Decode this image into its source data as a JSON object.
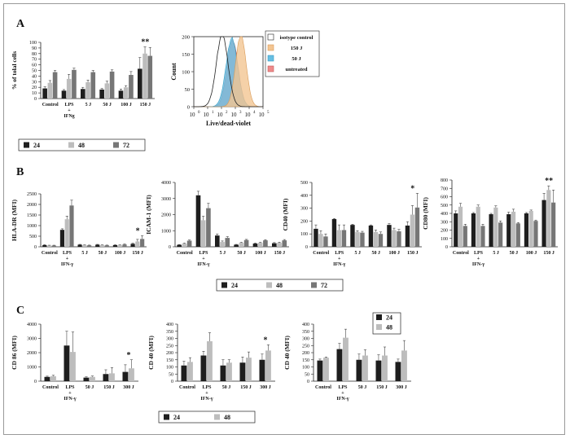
{
  "panels": {
    "A": {
      "label": "A"
    },
    "B": {
      "label": "B"
    },
    "C": {
      "label": "C"
    }
  },
  "colors": {
    "dark": "#1e1e1e",
    "light": "#bdbdbd",
    "mid": "#767676",
    "axis": "#222222"
  },
  "chart_data": [
    {
      "id": "A-bar",
      "type": "bar",
      "panel": "A",
      "title": "",
      "xlabel": "",
      "ylabel": "% of tolal cells",
      "ylim": [
        0,
        100
      ],
      "yticks": [
        0,
        10,
        20,
        30,
        40,
        50,
        60,
        70,
        80,
        90,
        100
      ],
      "categories": [
        "Control",
        "LPS\n+\nIFNg",
        "5 J",
        "50 J",
        "100 J",
        "150 J"
      ],
      "series": [
        {
          "name": "24",
          "color": "dark",
          "values": [
            18,
            14,
            17,
            16,
            14,
            53
          ],
          "errors": [
            3,
            2,
            3,
            2,
            3,
            20
          ]
        },
        {
          "name": "48",
          "color": "light",
          "values": [
            28,
            35,
            29,
            27,
            20,
            80
          ],
          "errors": [
            4,
            8,
            4,
            4,
            3,
            12
          ]
        },
        {
          "name": "72",
          "color": "mid",
          "values": [
            47,
            51,
            47,
            48,
            42,
            76
          ],
          "errors": [
            3,
            3,
            3,
            3,
            6,
            15
          ]
        }
      ],
      "annotations": [
        {
          "category": "150 J",
          "text": "**"
        }
      ]
    },
    {
      "id": "A-hist",
      "type": "area",
      "panel": "A",
      "title": "",
      "xlabel": "Live/dead-violet",
      "ylabel": "Count",
      "xlim": [
        0,
        5
      ],
      "ylim": [
        0,
        200
      ],
      "xticks": [
        "10",
        "10",
        "10",
        "10",
        "10",
        "10"
      ],
      "xtick_exponents": [
        "0",
        "1",
        "2",
        "3",
        "4",
        "5"
      ],
      "yticks": [
        0,
        50,
        100,
        150,
        200
      ],
      "legend": "right",
      "series": [
        {
          "name": "isotype control",
          "fill": "none",
          "stroke": "#222222",
          "center": 2.05,
          "width": 0.42,
          "height": 205
        },
        {
          "name": "150 J",
          "fill": "#f3c592",
          "stroke": "#d99a56",
          "center": 3.4,
          "width": 0.38,
          "height": 205
        },
        {
          "name": "50 J",
          "fill": "#67bfe3",
          "stroke": "#3a9bc2",
          "center": 2.75,
          "width": 0.42,
          "height": 195
        },
        {
          "name": "untreated",
          "fill": "#ef8b8b",
          "stroke": "#c45a5a",
          "center": 2.8,
          "width": 0.4,
          "height": 190
        }
      ]
    },
    {
      "id": "B-HLA",
      "type": "bar",
      "panel": "B",
      "title": "",
      "xlabel": "",
      "ylabel": "HLA-DR (MFI)",
      "ylim": [
        0,
        2500
      ],
      "yticks": [
        0,
        500,
        1000,
        1500,
        2000,
        2500
      ],
      "categories": [
        "Control",
        "LPS\n+\nIFN-γ",
        "5 J",
        "50 J",
        "100 J",
        "150 J"
      ],
      "series": [
        {
          "name": "24",
          "color": "dark",
          "values": [
            80,
            800,
            100,
            100,
            80,
            140
          ],
          "errors": [
            20,
            50,
            15,
            15,
            15,
            30
          ]
        },
        {
          "name": "48",
          "color": "light",
          "values": [
            60,
            1300,
            80,
            80,
            80,
            250
          ],
          "errors": [
            15,
            150,
            10,
            10,
            10,
            100
          ]
        },
        {
          "name": "72",
          "color": "mid",
          "values": [
            60,
            1950,
            70,
            70,
            110,
            370
          ],
          "errors": [
            15,
            250,
            10,
            10,
            20,
            150
          ]
        }
      ],
      "annotations": [
        {
          "category": "150 J",
          "text": "*"
        }
      ]
    },
    {
      "id": "B-ICAM",
      "type": "bar",
      "panel": "B",
      "title": "",
      "xlabel": "",
      "ylabel": "ICAM-1 (MFI)",
      "ylim": [
        0,
        4000
      ],
      "yticks": [
        0,
        1000,
        2000,
        3000,
        4000
      ],
      "categories": [
        "Control",
        "LPS\n+\nIFN-γ",
        "5 J",
        "50 J",
        "100 J",
        "150 J"
      ],
      "series": [
        {
          "name": "24",
          "color": "dark",
          "values": [
            120,
            3200,
            700,
            130,
            200,
            220
          ],
          "errors": [
            20,
            250,
            100,
            20,
            30,
            40
          ]
        },
        {
          "name": "48",
          "color": "light",
          "values": [
            200,
            1650,
            300,
            250,
            250,
            250
          ],
          "errors": [
            30,
            250,
            60,
            30,
            30,
            40
          ]
        },
        {
          "name": "72",
          "color": "mid",
          "values": [
            380,
            2400,
            550,
            420,
            400,
            400
          ],
          "errors": [
            40,
            300,
            80,
            40,
            40,
            50
          ]
        }
      ]
    },
    {
      "id": "B-CD40",
      "type": "bar",
      "panel": "B",
      "title": "",
      "xlabel": "",
      "ylabel": "CD40 (MFI)",
      "ylim": [
        0,
        500
      ],
      "yticks": [
        0,
        100,
        200,
        300,
        400,
        500
      ],
      "categories": [
        "Control",
        "LPS\n+\nIFN-γ",
        "5 J",
        "50 J",
        "100 J",
        "150 J"
      ],
      "series": [
        {
          "name": "24",
          "color": "dark",
          "values": [
            140,
            215,
            170,
            165,
            170,
            165
          ],
          "errors": [
            30,
            5,
            5,
            5,
            10,
            30
          ]
        },
        {
          "name": "48",
          "color": "light",
          "values": [
            100,
            130,
            115,
            115,
            130,
            250
          ],
          "errors": [
            25,
            40,
            10,
            15,
            15,
            70
          ]
        },
        {
          "name": "72",
          "color": "mid",
          "values": [
            80,
            130,
            110,
            100,
            120,
            305
          ],
          "errors": [
            20,
            40,
            10,
            15,
            15,
            110
          ]
        }
      ],
      "annotations": [
        {
          "category": "150 J",
          "text": "*"
        }
      ]
    },
    {
      "id": "B-CD80",
      "type": "bar",
      "panel": "B",
      "title": "",
      "xlabel": "",
      "ylabel": "CD80 (MFI)",
      "ylim": [
        0,
        800
      ],
      "yticks": [
        0,
        100,
        200,
        300,
        400,
        500,
        600,
        700,
        800
      ],
      "categories": [
        "Control",
        "LPS\n+\nIFN-γ",
        "5 J",
        "50 J",
        "100 J",
        "150 J"
      ],
      "series": [
        {
          "name": "24",
          "color": "dark",
          "values": [
            400,
            400,
            390,
            390,
            400,
            560
          ],
          "errors": [
            30,
            10,
            10,
            25,
            10,
            80
          ]
        },
        {
          "name": "48",
          "color": "light",
          "values": [
            480,
            480,
            470,
            420,
            430,
            680
          ],
          "errors": [
            40,
            20,
            20,
            30,
            10,
            50
          ]
        },
        {
          "name": "72",
          "color": "mid",
          "values": [
            250,
            250,
            290,
            280,
            310,
            530
          ],
          "errors": [
            20,
            20,
            20,
            10,
            10,
            150
          ]
        }
      ],
      "annotations": [
        {
          "category": "150 J",
          "text": "**"
        }
      ]
    },
    {
      "id": "C-CD86",
      "type": "bar",
      "panel": "C",
      "title": "",
      "xlabel": "",
      "ylabel": "CD 86 (MFI)",
      "ylim": [
        0,
        4000
      ],
      "yticks": [
        0,
        1000,
        2000,
        3000,
        4000
      ],
      "categories": [
        "Control",
        "LPS\n+\nIFN-γ",
        "50 J",
        "150 J",
        "300 J"
      ],
      "series": [
        {
          "name": "24",
          "color": "dark",
          "values": [
            300,
            2500,
            250,
            500,
            650
          ],
          "errors": [
            50,
            1000,
            50,
            300,
            500
          ]
        },
        {
          "name": "48",
          "color": "light",
          "values": [
            350,
            2050,
            300,
            550,
            900
          ],
          "errors": [
            60,
            1400,
            60,
            400,
            600
          ]
        }
      ],
      "annotations": [
        {
          "category": "300 J",
          "text": "*"
        }
      ]
    },
    {
      "id": "C-CD40a",
      "type": "bar",
      "panel": "C",
      "title": "",
      "xlabel": "",
      "ylabel": "CD 40 (MFI)",
      "ylim": [
        0,
        400
      ],
      "yticks": [
        0,
        50,
        100,
        150,
        200,
        250,
        300,
        350,
        400
      ],
      "categories": [
        "Control",
        "LPS\n+\nIFN-γ",
        "50 J",
        "150 J",
        "300 J"
      ],
      "series": [
        {
          "name": "24",
          "color": "dark",
          "values": [
            110,
            180,
            110,
            130,
            150
          ],
          "errors": [
            30,
            30,
            40,
            40,
            40
          ]
        },
        {
          "name": "48",
          "color": "light",
          "values": [
            135,
            280,
            130,
            165,
            215
          ],
          "errors": [
            30,
            60,
            20,
            40,
            40
          ]
        }
      ],
      "annotations": [
        {
          "category": "300 J",
          "text": "*"
        }
      ]
    },
    {
      "id": "C-CD40b",
      "type": "bar",
      "panel": "C",
      "title": "",
      "xlabel": "",
      "ylabel": "CD 40 (MFI)",
      "ylim": [
        0,
        400
      ],
      "yticks": [
        0,
        50,
        100,
        150,
        200,
        250,
        300,
        350,
        400
      ],
      "categories": [
        "Control",
        "LPS\n+\nIFN-γ",
        "50 J",
        "150 J",
        "300 J"
      ],
      "series": [
        {
          "name": "24",
          "color": "dark",
          "values": [
            145,
            225,
            150,
            145,
            135
          ],
          "errors": [
            10,
            40,
            40,
            40,
            20
          ]
        },
        {
          "name": "48",
          "color": "light",
          "values": [
            165,
            305,
            180,
            180,
            215
          ],
          "errors": [
            5,
            60,
            40,
            60,
            70
          ]
        }
      ]
    }
  ],
  "legends": [
    {
      "id": "legend-A",
      "items": [
        {
          "label": "24",
          "color": "dark"
        },
        {
          "label": "48",
          "color": "light"
        },
        {
          "label": "72",
          "color": "mid"
        }
      ]
    },
    {
      "id": "legend-B",
      "items": [
        {
          "label": "24",
          "color": "dark"
        },
        {
          "label": "48",
          "color": "light"
        },
        {
          "label": "72",
          "color": "mid"
        }
      ]
    },
    {
      "id": "legend-C-bottom",
      "items": [
        {
          "label": "24",
          "color": "dark"
        },
        {
          "label": "48",
          "color": "light"
        }
      ]
    },
    {
      "id": "legend-C-right",
      "items": [
        {
          "label": "24",
          "color": "dark"
        },
        {
          "label": "48",
          "color": "light"
        }
      ]
    }
  ]
}
